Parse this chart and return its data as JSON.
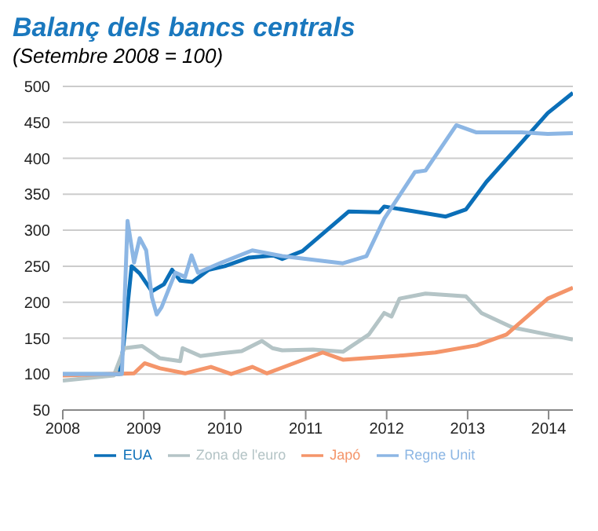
{
  "chart_data": {
    "type": "line",
    "title": "Balanç dels bancs centrals",
    "subtitle": "(Setembre 2008 = 100)",
    "xlim": [
      2008,
      2014.3
    ],
    "xticks": [
      2008,
      2009,
      2010,
      2011,
      2012,
      2013,
      2014
    ],
    "ylim": [
      50,
      500
    ],
    "yticks": [
      50,
      100,
      150,
      200,
      250,
      300,
      350,
      400,
      450,
      500
    ],
    "grid": "y",
    "legend": "bottom",
    "marker": "none",
    "line_style": "solid",
    "series": [
      {
        "name": "EUA",
        "color": "#0b6fb8",
        "x": [
          2008,
          2008.7,
          2008.75,
          2008.85,
          2008.95,
          2009.1,
          2009.25,
          2009.35,
          2009.45,
          2009.6,
          2009.8,
          2010,
          2010.3,
          2010.6,
          2010.71,
          2010.96,
          2011.53,
          2011.91,
          2011.97,
          2012.35,
          2012.73,
          2012.98,
          2013.23,
          2013.61,
          2013.99,
          2014.3
        ],
        "values": [
          100,
          100,
          140,
          250,
          240,
          215,
          225,
          245,
          230,
          228,
          245,
          250,
          262,
          265,
          260,
          271,
          326,
          325,
          333,
          326,
          319,
          329,
          367,
          415,
          463,
          491
        ]
      },
      {
        "name": "Zona de l'euro",
        "color": "#b4c4c6",
        "x": [
          2008,
          2008.63,
          2008.76,
          2008.98,
          2009.2,
          2009.45,
          2009.48,
          2009.7,
          2009.96,
          2010.21,
          2010.46,
          2010.59,
          2010.71,
          2011.09,
          2011.46,
          2011.78,
          2011.97,
          2012.06,
          2012.16,
          2012.48,
          2012.98,
          2013.17,
          2013.55,
          2013.99,
          2014.3
        ],
        "values": [
          91,
          98,
          136,
          139,
          122,
          118,
          136,
          125,
          129,
          132,
          146,
          136,
          133,
          134,
          131,
          155,
          185,
          180,
          205,
          212,
          208,
          185,
          165,
          155,
          148
        ]
      },
      {
        "name": "Japó",
        "color": "#f4956a",
        "x": [
          2008,
          2008.88,
          2009.01,
          2009.2,
          2009.51,
          2009.83,
          2010.08,
          2010.34,
          2010.52,
          2010.71,
          2011.21,
          2011.46,
          2012.2,
          2012.6,
          2013.11,
          2013.48,
          2013.99,
          2014.3
        ],
        "values": [
          98,
          101,
          115,
          108,
          101,
          110,
          100,
          110,
          101,
          109,
          130,
          120,
          126,
          130,
          140,
          155,
          205,
          220
        ]
      },
      {
        "name": "Regne Unit",
        "color": "#8cb6e4",
        "x": [
          2008,
          2008.73,
          2008.8,
          2008.88,
          2008.95,
          2009.03,
          2009.1,
          2009.16,
          2009.22,
          2009.39,
          2009.51,
          2009.59,
          2009.67,
          2009.96,
          2010.34,
          2010.71,
          2011.46,
          2011.75,
          2011.97,
          2012.35,
          2012.48,
          2012.86,
          2013.11,
          2013.67,
          2013.99,
          2014.3
        ],
        "values": [
          100,
          100,
          313,
          255,
          289,
          272,
          207,
          183,
          193,
          241,
          235,
          265,
          241,
          255,
          272,
          264,
          254,
          264,
          316,
          381,
          383,
          446,
          436,
          436,
          434,
          435
        ]
      }
    ]
  }
}
